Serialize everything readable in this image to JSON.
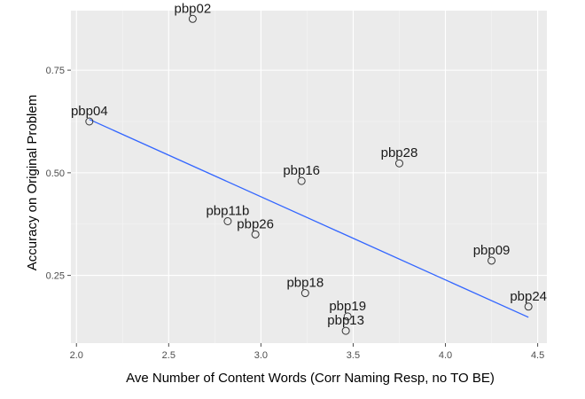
{
  "chart_data": {
    "type": "scatter",
    "title": "",
    "xlabel": "Ave Number of Content Words (Corr Naming Resp, no TO BE)",
    "ylabel": "Accuracy on Original Problem",
    "xlim": [
      1.97,
      4.55
    ],
    "ylim": [
      0.085,
      0.895
    ],
    "xticks": [
      {
        "value": 2.0,
        "label": "2.0"
      },
      {
        "value": 2.5,
        "label": "2.5"
      },
      {
        "value": 3.0,
        "label": "3.0"
      },
      {
        "value": 3.5,
        "label": "3.5"
      },
      {
        "value": 4.0,
        "label": "4.0"
      },
      {
        "value": 4.5,
        "label": "4.5"
      }
    ],
    "yticks": [
      {
        "value": 0.25,
        "label": "0.25"
      },
      {
        "value": 0.5,
        "label": "0.50"
      },
      {
        "value": 0.75,
        "label": "0.75"
      }
    ],
    "grid": true,
    "background": "#ebebeb",
    "points": [
      {
        "label": "pbp02",
        "x": 2.63,
        "y": 0.875
      },
      {
        "label": "pbp04",
        "x": 2.07,
        "y": 0.625
      },
      {
        "label": "pbp16",
        "x": 3.22,
        "y": 0.48
      },
      {
        "label": "pbp28",
        "x": 3.75,
        "y": 0.523
      },
      {
        "label": "pbp11b",
        "x": 2.82,
        "y": 0.382
      },
      {
        "label": "pbp26",
        "x": 2.97,
        "y": 0.35
      },
      {
        "label": "pbp09",
        "x": 4.25,
        "y": 0.286
      },
      {
        "label": "pbp18",
        "x": 3.24,
        "y": 0.207
      },
      {
        "label": "pbp24",
        "x": 4.45,
        "y": 0.174
      },
      {
        "label": "pbp19",
        "x": 3.47,
        "y": 0.15
      },
      {
        "label": "pbp13",
        "x": 3.46,
        "y": 0.115
      }
    ],
    "trendline": {
      "x": [
        2.07,
        4.45
      ],
      "y": [
        0.63,
        0.148
      ],
      "color": "#3366ff"
    },
    "point_color": "#333333"
  }
}
